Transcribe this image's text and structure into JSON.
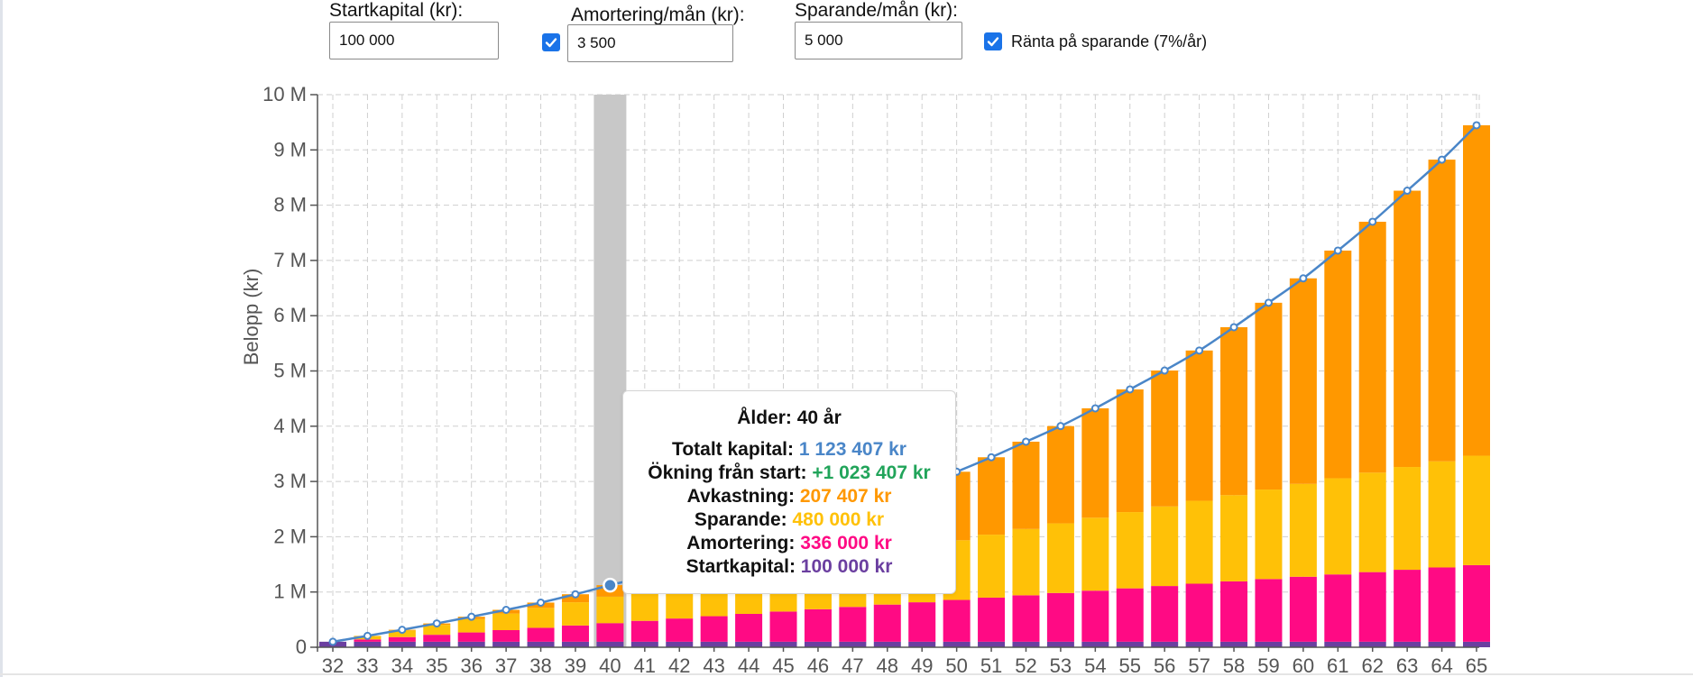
{
  "controls": {
    "startkapital": {
      "label": "Startkapital (kr):",
      "value": "100 000"
    },
    "amortering": {
      "label": "Amortering/mån (kr):",
      "value": "3 500",
      "enabled": true
    },
    "sparande": {
      "label": "Sparande/mån (kr):",
      "value": "5 000"
    },
    "ranta": {
      "label": "Ränta på sparande (7%/år)",
      "checked": true
    }
  },
  "colors": {
    "startkapital": "#6b3fa0",
    "amortering": "#ff0a84",
    "sparande": "#ffc107",
    "avkastning": "#ff9800",
    "line": "#4a86c8",
    "highlight": "#c8c8c8",
    "increase": "#21a45a"
  },
  "chart_data": {
    "type": "bar",
    "stacked": true,
    "ylabel": "Belopp (kr)",
    "ylim": [
      0,
      10000000
    ],
    "yticks": [
      "0",
      "1 M",
      "2 M",
      "3 M",
      "4 M",
      "5 M",
      "6 M",
      "7 M",
      "8 M",
      "9 M",
      "10 M"
    ],
    "grid": true,
    "categories": [
      32,
      33,
      34,
      35,
      36,
      37,
      38,
      39,
      40,
      41,
      42,
      43,
      44,
      45,
      46,
      47,
      48,
      49,
      50,
      51,
      52,
      53,
      54,
      55,
      56,
      57,
      58,
      59,
      60,
      61,
      62,
      63,
      64,
      65
    ],
    "series": [
      {
        "name": "Startkapital",
        "values": [
          100000,
          100000,
          100000,
          100000,
          100000,
          100000,
          100000,
          100000,
          100000,
          100000,
          100000,
          100000,
          100000,
          100000,
          100000,
          100000,
          100000,
          100000,
          100000,
          100000,
          100000,
          100000,
          100000,
          100000,
          100000,
          100000,
          100000,
          100000,
          100000,
          100000,
          100000,
          100000,
          100000,
          100000
        ]
      },
      {
        "name": "Amortering",
        "values": [
          0,
          42000,
          84000,
          126000,
          168000,
          210000,
          252000,
          294000,
          336000,
          378000,
          420000,
          462000,
          504000,
          546000,
          588000,
          630000,
          672000,
          714000,
          756000,
          798000,
          840000,
          882000,
          924000,
          966000,
          1008000,
          1050000,
          1092000,
          1134000,
          1176000,
          1218000,
          1260000,
          1302000,
          1344000,
          1386000
        ]
      },
      {
        "name": "Sparande",
        "values": [
          0,
          60000,
          120000,
          180000,
          240000,
          300000,
          360000,
          420000,
          480000,
          540000,
          600000,
          660000,
          720000,
          780000,
          840000,
          900000,
          960000,
          1020000,
          1080000,
          1140000,
          1200000,
          1260000,
          1320000,
          1380000,
          1440000,
          1500000,
          1560000,
          1620000,
          1680000,
          1740000,
          1800000,
          1860000,
          1920000,
          1980000
        ]
      },
      {
        "name": "Avkastning",
        "values": [
          0,
          4000,
          12000,
          25000,
          44000,
          67000,
          96000,
          145000,
          207407,
          260000,
          330000,
          410000,
          500000,
          600000,
          700000,
          820000,
          950000,
          1090000,
          1240000,
          1400000,
          1580000,
          1760000,
          1980000,
          2220000,
          2460000,
          2720000,
          3040000,
          3380000,
          3720000,
          4120000,
          4540000,
          5000000,
          5460000,
          5980000
        ]
      }
    ],
    "total": [
      100000,
      206000,
      316000,
      431000,
      552000,
      677000,
      808000,
      959000,
      1123407,
      1278000,
      1450000,
      1632000,
      1824000,
      2026000,
      2228000,
      2450000,
      2682000,
      2924000,
      3176000,
      3438000,
      3720000,
      4002000,
      4324000,
      4666000,
      5008000,
      5370000,
      5792000,
      6234000,
      6676000,
      7178000,
      7700000,
      8262000,
      8824000,
      9446000
    ],
    "highlight_index": 8
  },
  "tooltip": {
    "title": "Ålder: 40 år",
    "rows": [
      {
        "label": "Totalt kapital:",
        "value": "1 123 407 kr",
        "color": "#4a86c8"
      },
      {
        "label": "Ökning från start:",
        "value": "+1 023 407 kr",
        "color": "#21a45a"
      },
      {
        "label": "Avkastning:",
        "value": "207 407 kr",
        "color": "#ff9800"
      },
      {
        "label": "Sparande:",
        "value": "480 000 kr",
        "color": "#ffc107"
      },
      {
        "label": "Amortering:",
        "value": "336 000 kr",
        "color": "#ff0a84"
      },
      {
        "label": "Startkapital:",
        "value": "100 000 kr",
        "color": "#6b3fa0"
      }
    ]
  }
}
